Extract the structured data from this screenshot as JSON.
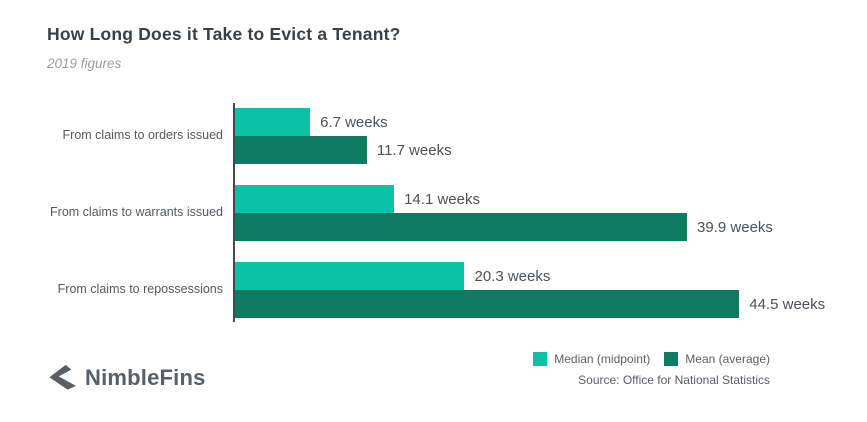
{
  "header": {
    "title": "How Long Does it Take to Evict a Tenant?",
    "subtitle": "2019 figures"
  },
  "chart_data": {
    "type": "bar",
    "orientation": "horizontal",
    "title": "How Long Does it Take to Evict a Tenant?",
    "subtitle": "2019 figures",
    "unit": "weeks",
    "categories": [
      "From claims to orders issued",
      "From claims to warrants issued",
      "From claims to repossessions"
    ],
    "series": [
      {
        "name": "Median (midpoint)",
        "color": "#0bc1a5",
        "values": [
          6.7,
          14.1,
          20.3
        ],
        "labels": [
          "6.7 weeks",
          "14.1 weeks",
          "20.3 weeks"
        ]
      },
      {
        "name": "Mean (average)",
        "color": "#0e7a62",
        "values": [
          11.7,
          39.9,
          44.5
        ],
        "labels": [
          "11.7 weeks",
          "39.9 weeks",
          "44.5 weeks"
        ]
      }
    ],
    "xlim": [
      0,
      48
    ],
    "grid": false,
    "legend_position": "bottom-right"
  },
  "legend": {
    "items": [
      {
        "label": "Median (midpoint)",
        "color": "#0bc1a5"
      },
      {
        "label": "Mean (average)",
        "color": "#0e7a62"
      }
    ]
  },
  "source": "Source: Office for National Statistics",
  "logo": {
    "text": "NimbleFins",
    "icon": "nimblefins-arrow-icon",
    "color": "#5a5f65"
  },
  "colors": {
    "median": "#0bc1a5",
    "mean": "#0e7a62",
    "title_text": "#3b4045",
    "subtitle_text": "#9a9da1",
    "category_text": "#55595e",
    "value_text": "#4c5156",
    "axis": "#45494e",
    "background": "#ffffff"
  }
}
